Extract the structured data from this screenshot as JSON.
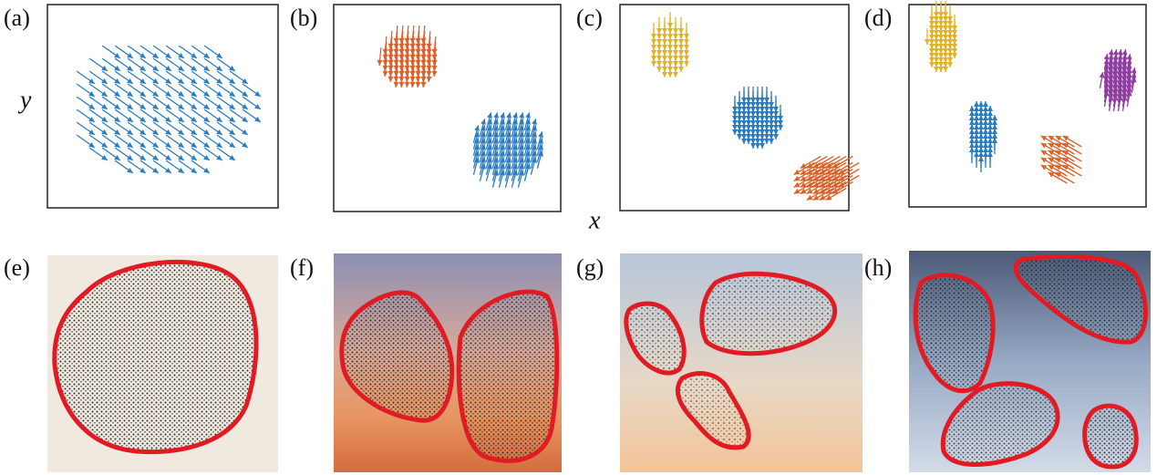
{
  "panels": [
    {
      "label": "(a)"
    },
    {
      "label": "(b)"
    },
    {
      "label": "(c)"
    },
    {
      "label": "(d)"
    },
    {
      "label": "(e)"
    },
    {
      "label": "(f)"
    },
    {
      "label": "(g)"
    },
    {
      "label": "(h)"
    }
  ],
  "axes": {
    "y": "y",
    "x": "x"
  }
}
